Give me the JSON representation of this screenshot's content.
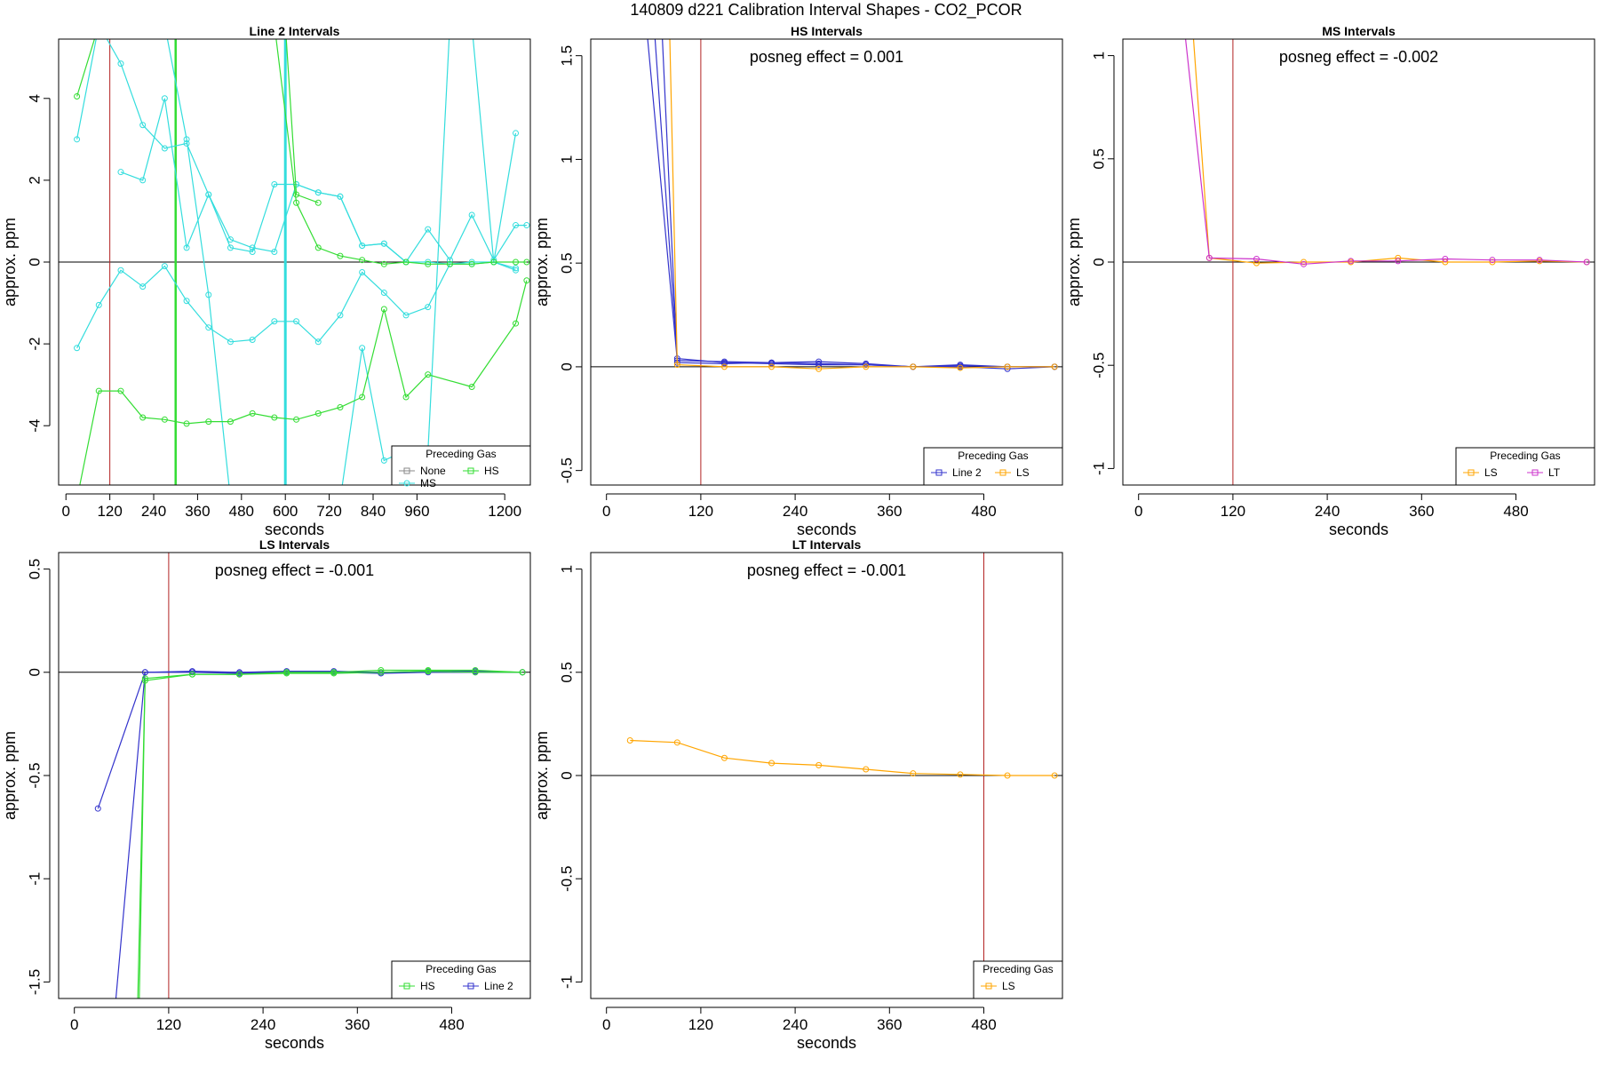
{
  "main_title": "140809  d221   Calibration Interval Shapes - CO2_PCOR",
  "chart_data": [
    {
      "type": "line",
      "title": "Line 2 Intervals",
      "xlabel": "seconds",
      "ylabel": "approx. ppm",
      "xlim": [
        -20,
        1270
      ],
      "ylim": [
        -5.45,
        5.45
      ],
      "xticks": [
        0,
        120,
        240,
        360,
        480,
        600,
        720,
        840,
        960,
        1200
      ],
      "yticks": [
        -4,
        -2,
        0,
        2,
        4
      ],
      "hline": 0,
      "vlines": [
        {
          "x": 120,
          "color": "#b22222",
          "width": 1
        },
        {
          "x": 300,
          "color": "#33dd33",
          "width": 2.5
        },
        {
          "x": 600,
          "color": "#33dddd",
          "width": 3
        }
      ],
      "annotation": "",
      "legend": {
        "title": "Preceding Gas",
        "position": "bottom-right",
        "entries": [
          {
            "label": "None",
            "color": "#888888",
            "marker": "square"
          },
          {
            "label": "HS",
            "color": "#33dd33",
            "marker": "square"
          },
          {
            "label": "MS",
            "color": "#33dddd",
            "marker": "circle"
          }
        ]
      },
      "series": [
        {
          "color": "#33dddd",
          "x": [
            30,
            90,
            150,
            210,
            270,
            330,
            390,
            450,
            510,
            570,
            630,
            690,
            750,
            810,
            870,
            930,
            990,
            1050,
            1110,
            1170,
            1230
          ],
          "y": [
            3.0,
            5.8,
            4.85,
            3.35,
            2.78,
            2.9,
            1.65,
            0.55,
            0.35,
            0.25,
            1.9,
            1.7,
            1.6,
            0.4,
            0.45,
            0.0,
            0.0,
            -0.05,
            -0.05,
            0.0,
            3.15
          ]
        },
        {
          "color": "#33dddd",
          "x": [
            150,
            210,
            270,
            330,
            390,
            450,
            510,
            570,
            630,
            690,
            750,
            810,
            870,
            930,
            990,
            1050,
            1110,
            1170,
            1230,
            1260
          ],
          "y": [
            2.2,
            2.0,
            4.0,
            0.35,
            1.65,
            0.35,
            0.25,
            1.9,
            1.9,
            1.7,
            1.6,
            0.4,
            0.45,
            0.0,
            0.8,
            0.05,
            1.15,
            0.05,
            0.9,
            0.9
          ]
        },
        {
          "color": "#33dddd",
          "x": [
            30,
            90,
            150,
            210,
            270,
            330,
            390,
            450,
            510,
            570,
            630,
            690,
            750,
            810,
            870,
            930,
            990,
            1050,
            1110,
            1170,
            1230
          ],
          "y": [
            -2.1,
            -1.05,
            -0.2,
            -0.6,
            -0.1,
            -0.95,
            -1.6,
            -1.95,
            -1.9,
            -1.45,
            -1.45,
            -1.95,
            -1.3,
            -0.25,
            -0.75,
            -1.3,
            -1.1,
            -0.05,
            0.0,
            0.0,
            -0.15
          ]
        },
        {
          "color": "#33dddd",
          "x": [
            150,
            210,
            270,
            330,
            390,
            450,
            510,
            570,
            630,
            690,
            750,
            810,
            870,
            930,
            990,
            1050,
            1110,
            1170,
            1230
          ],
          "y": [
            5.8,
            5.8,
            5.8,
            3.0,
            -0.8,
            -5.8,
            -5.8,
            -5.8,
            -5.8,
            -5.8,
            -5.8,
            -2.1,
            -4.85,
            -4.6,
            -4.65,
            5.8,
            5.8,
            0.0,
            -0.2
          ]
        },
        {
          "color": "#33dd33",
          "x": [
            30,
            90,
            150,
            210,
            270,
            330,
            390,
            450,
            510,
            570,
            630,
            690,
            750,
            810,
            870,
            930,
            990,
            1050,
            1110,
            1170,
            1230,
            1260
          ],
          "y": [
            4.05,
            5.8,
            5.8,
            5.8,
            5.8,
            5.8,
            5.8,
            5.8,
            5.8,
            5.8,
            1.45,
            0.35,
            0.15,
            0.05,
            -0.05,
            0.0,
            -0.05,
            -0.05,
            -0.05,
            0.0,
            0.0,
            0.0
          ]
        },
        {
          "color": "#33dd33",
          "x": [
            30,
            90,
            150,
            210,
            270,
            330,
            390,
            450,
            510,
            570,
            630,
            690,
            750,
            810,
            870,
            930,
            990,
            1110,
            1230,
            1260
          ],
          "y": [
            -5.8,
            -3.15,
            -3.15,
            -3.8,
            -3.85,
            -3.95,
            -3.9,
            -3.9,
            -3.7,
            -3.8,
            -3.85,
            -3.7,
            -3.55,
            -3.3,
            -1.15,
            -3.3,
            -2.75,
            -3.05,
            -1.5,
            -0.45
          ]
        },
        {
          "color": "#33dd33",
          "x": [
            600,
            630,
            690
          ],
          "y": [
            5.8,
            1.65,
            1.45
          ]
        }
      ]
    },
    {
      "type": "line",
      "title": "HS Intervals",
      "xlabel": "seconds",
      "ylabel": "approx. ppm",
      "xlim": [
        -20,
        580
      ],
      "ylim": [
        -0.57,
        1.58
      ],
      "xticks": [
        0,
        120,
        240,
        360,
        480
      ],
      "yticks": [
        -0.5,
        0.0,
        0.5,
        1.0,
        1.5
      ],
      "hline": 0,
      "vlines": [
        {
          "x": 120,
          "color": "#b22222",
          "width": 1
        }
      ],
      "annotation": "posneg effect = 0.001",
      "legend": {
        "title": "Preceding Gas",
        "position": "bottom-right",
        "entries": [
          {
            "label": "Line 2",
            "color": "#3333cc",
            "marker": "square"
          },
          {
            "label": "LS",
            "color": "#ffa500",
            "marker": "square"
          }
        ]
      },
      "series": [
        {
          "color": "#3333cc",
          "x": [
            30,
            90,
            150,
            210,
            270,
            330,
            390,
            450,
            510,
            570
          ],
          "y": [
            2.5,
            0.03,
            0.025,
            0.02,
            0.025,
            0.015,
            0.0,
            0.01,
            0.0,
            0.0
          ]
        },
        {
          "color": "#3333cc",
          "x": [
            45,
            90,
            150,
            210,
            270,
            330,
            390,
            450,
            510,
            570
          ],
          "y": [
            2.5,
            0.04,
            0.02,
            0.015,
            0.01,
            0.01,
            0.0,
            0.0,
            -0.01,
            0.0
          ]
        },
        {
          "color": "#3333cc",
          "x": [
            60,
            90,
            150,
            210,
            270,
            330,
            390,
            450,
            510,
            570
          ],
          "y": [
            2.5,
            0.02,
            0.015,
            0.02,
            0.015,
            0.01,
            0.0,
            0.005,
            0.0,
            0.0
          ]
        },
        {
          "color": "#ffa500",
          "x": [
            75,
            90,
            150,
            210,
            270,
            330,
            390,
            450,
            510,
            570
          ],
          "y": [
            2.5,
            0.01,
            0.0,
            0.0,
            -0.01,
            0.0,
            0.0,
            -0.005,
            0.0,
            0.0
          ]
        }
      ]
    },
    {
      "type": "line",
      "title": "MS Intervals",
      "xlabel": "seconds",
      "ylabel": "approx. ppm",
      "xlim": [
        -20,
        580
      ],
      "ylim": [
        -1.08,
        1.08
      ],
      "xticks": [
        0,
        120,
        240,
        360,
        480
      ],
      "yticks": [
        -1.0,
        -0.5,
        0.0,
        0.5,
        1.0
      ],
      "hline": 0,
      "vlines": [
        {
          "x": 120,
          "color": "#b22222",
          "width": 1
        }
      ],
      "annotation": "posneg effect = -0.002",
      "legend": {
        "title": "Preceding Gas",
        "position": "bottom-right",
        "entries": [
          {
            "label": "LS",
            "color": "#ffa500",
            "marker": "square"
          },
          {
            "label": "LT",
            "color": "#cc33cc",
            "marker": "square"
          }
        ]
      },
      "series": [
        {
          "color": "#ffa500",
          "x": [
            60,
            90,
            150,
            210,
            270,
            330,
            390,
            450,
            510,
            570
          ],
          "y": [
            1.6,
            0.02,
            -0.005,
            0.0,
            0.0,
            0.02,
            0.0,
            0.0,
            0.005,
            0.0
          ]
        },
        {
          "color": "#cc33cc",
          "x": [
            45,
            90,
            150,
            210,
            270,
            330,
            390,
            450,
            510,
            570
          ],
          "y": [
            1.6,
            0.02,
            0.015,
            -0.01,
            0.005,
            0.005,
            0.015,
            0.01,
            0.01,
            0.0
          ]
        }
      ]
    },
    {
      "type": "line",
      "title": "LS Intervals",
      "xlabel": "seconds",
      "ylabel": "approx. ppm",
      "xlim": [
        -20,
        580
      ],
      "ylim": [
        -1.58,
        0.58
      ],
      "xticks": [
        0,
        120,
        240,
        360,
        480
      ],
      "yticks": [
        -1.5,
        -1.0,
        -0.5,
        0.0,
        0.5
      ],
      "hline": 0,
      "vlines": [
        {
          "x": 120,
          "color": "#b22222",
          "width": 1
        }
      ],
      "annotation": "posneg effect = -0.001",
      "legend": {
        "title": "Preceding Gas",
        "position": "bottom-right",
        "entries": [
          {
            "label": "HS",
            "color": "#33dd33",
            "marker": "square"
          },
          {
            "label": "Line 2",
            "color": "#3333cc",
            "marker": "square"
          }
        ]
      },
      "series": [
        {
          "color": "#3333cc",
          "x": [
            30,
            90,
            150,
            210,
            270,
            330,
            390,
            450,
            510,
            570
          ],
          "y": [
            -0.66,
            0.0,
            0.0,
            -0.005,
            0.0,
            0.0,
            -0.005,
            0.0,
            0.0,
            0.0
          ]
        },
        {
          "color": "#3333cc",
          "x": [
            50,
            90,
            150,
            210,
            270,
            330,
            390,
            450,
            510,
            570
          ],
          "y": [
            -1.7,
            0.0,
            0.005,
            0.0,
            0.005,
            0.005,
            0.0,
            0.005,
            0.005,
            0.0
          ]
        },
        {
          "color": "#33dd33",
          "x": [
            80,
            90,
            150,
            210,
            270,
            330,
            390,
            450,
            510,
            570
          ],
          "y": [
            -1.7,
            -0.04,
            -0.01,
            -0.01,
            0.0,
            0.0,
            0.01,
            0.01,
            0.01,
            0.0
          ]
        },
        {
          "color": "#33dd33",
          "x": [
            82,
            90,
            150,
            210,
            270,
            330,
            390,
            450,
            510,
            570
          ],
          "y": [
            -1.7,
            -0.03,
            -0.01,
            -0.01,
            -0.005,
            -0.005,
            0.0,
            0.005,
            0.0,
            0.0
          ]
        }
      ]
    },
    {
      "type": "line",
      "title": "LT Intervals",
      "xlabel": "seconds",
      "ylabel": "approx. ppm",
      "xlim": [
        -20,
        580
      ],
      "ylim": [
        -1.08,
        1.08
      ],
      "xticks": [
        0,
        120,
        240,
        360,
        480
      ],
      "yticks": [
        -1.0,
        -0.5,
        0.0,
        0.5,
        1.0
      ],
      "hline": 0,
      "vlines": [
        {
          "x": 480,
          "color": "#b22222",
          "width": 1
        }
      ],
      "annotation": "posneg effect = -0.001",
      "legend": {
        "title": "Preceding Gas",
        "position": "bottom-right",
        "entries": [
          {
            "label": "LS",
            "color": "#ffa500",
            "marker": "square"
          }
        ]
      },
      "series": [
        {
          "color": "#ffa500",
          "x": [
            30,
            90,
            150,
            210,
            270,
            330,
            390,
            450,
            510,
            570
          ],
          "y": [
            0.17,
            0.16,
            0.085,
            0.06,
            0.05,
            0.03,
            0.01,
            0.005,
            0.0,
            0.0
          ]
        }
      ]
    }
  ]
}
